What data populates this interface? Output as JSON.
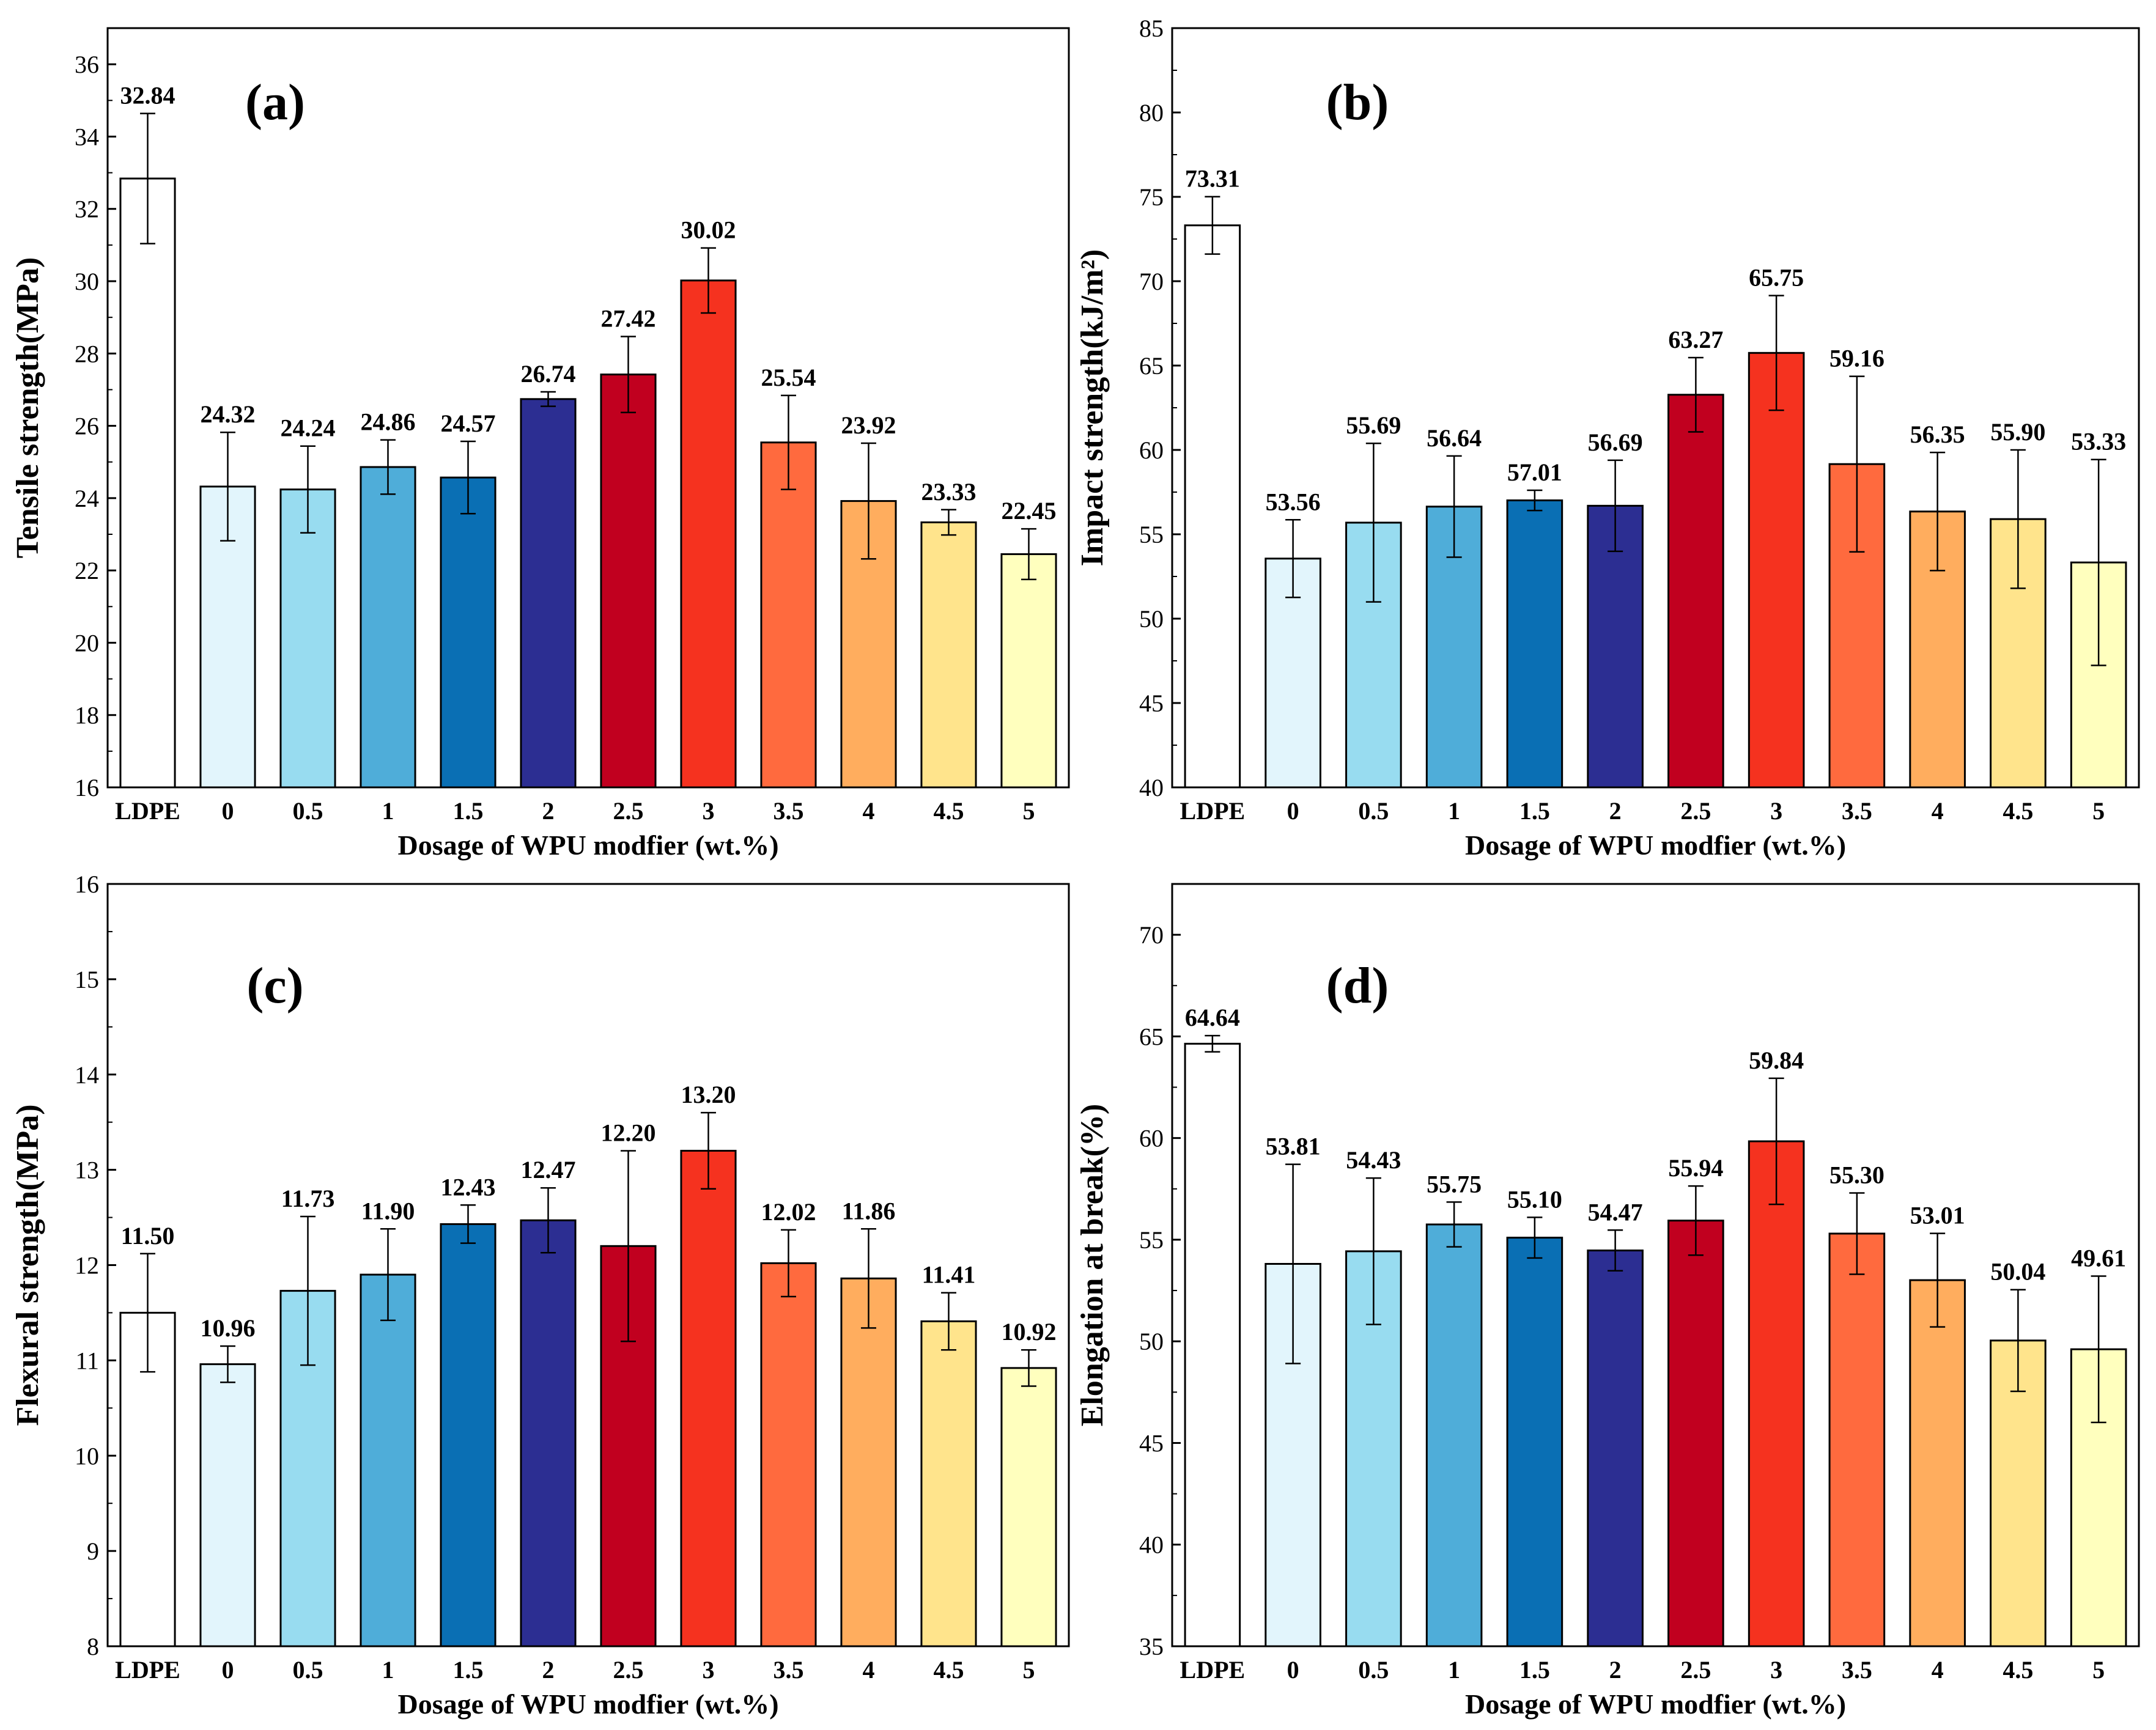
{
  "chart_data": [
    {
      "type": "bar",
      "panel_label": "(a)",
      "ylabel": "Tensile strength(MPa)",
      "xlabel": "Dosage of WPU modfier (wt.%)",
      "ylim": [
        16,
        37
      ],
      "yticks": [
        16,
        18,
        20,
        22,
        24,
        26,
        28,
        30,
        32,
        34,
        36
      ],
      "categories": [
        "LDPE",
        "0",
        "0.5",
        "1",
        "1.5",
        "2",
        "2.5",
        "3",
        "3.5",
        "4",
        "4.5",
        "5"
      ],
      "values": [
        32.84,
        24.32,
        24.24,
        24.86,
        24.57,
        26.74,
        27.42,
        30.02,
        25.54,
        23.92,
        23.33,
        22.45
      ],
      "value_labels": [
        "32.84",
        "24.32",
        "24.24",
        "24.86",
        "24.57",
        "26.74",
        "27.42",
        "30.02",
        "25.54",
        "23.92",
        "23.33",
        "22.45"
      ],
      "errors": [
        1.8,
        1.5,
        1.2,
        0.75,
        1.0,
        0.2,
        1.05,
        0.9,
        1.3,
        1.6,
        0.35,
        0.7
      ]
    },
    {
      "type": "bar",
      "panel_label": "(b)",
      "ylabel": "Impact strength(kJ/m²)",
      "xlabel": "Dosage of WPU modfier (wt.%)",
      "ylim": [
        40,
        85
      ],
      "yticks": [
        40,
        45,
        50,
        55,
        60,
        65,
        70,
        75,
        80,
        85
      ],
      "categories": [
        "LDPE",
        "0",
        "0.5",
        "1",
        "1.5",
        "2",
        "2.5",
        "3",
        "3.5",
        "4",
        "4.5",
        "5"
      ],
      "values": [
        73.31,
        53.56,
        55.69,
        56.64,
        57.01,
        56.69,
        63.27,
        65.75,
        59.16,
        56.35,
        55.9,
        53.33
      ],
      "value_labels": [
        "73.31",
        "53.56",
        "55.69",
        "56.64",
        "57.01",
        "56.69",
        "63.27",
        "65.75",
        "59.16",
        "56.35",
        "55.90",
        "53.33"
      ],
      "errors": [
        1.7,
        2.3,
        4.7,
        3.0,
        0.6,
        2.7,
        2.2,
        3.4,
        5.2,
        3.5,
        4.1,
        6.1
      ]
    },
    {
      "type": "bar",
      "panel_label": "(c)",
      "ylabel": "Flexural strength(MPa)",
      "xlabel": "Dosage of WPU modfier (wt.%)",
      "ylim": [
        8,
        16
      ],
      "yticks": [
        8,
        9,
        10,
        11,
        12,
        13,
        14,
        15,
        16
      ],
      "categories": [
        "LDPE",
        "0",
        "0.5",
        "1",
        "1.5",
        "2",
        "2.5",
        "3",
        "3.5",
        "4",
        "4.5",
        "5"
      ],
      "values": [
        11.5,
        10.96,
        11.73,
        11.9,
        12.43,
        12.47,
        12.2,
        13.2,
        12.02,
        11.86,
        11.41,
        10.92
      ],
      "value_labels": [
        "11.50",
        "10.96",
        "11.73",
        "11.90",
        "12.43",
        "12.47",
        "12.20",
        "13.20",
        "12.02",
        "11.86",
        "11.41",
        "10.92"
      ],
      "errors": [
        0.62,
        0.19,
        0.78,
        0.48,
        0.2,
        0.34,
        1.0,
        0.4,
        0.35,
        0.52,
        0.3,
        0.19
      ]
    },
    {
      "type": "bar",
      "panel_label": "(d)",
      "ylabel": "Elongation at break(%)",
      "xlabel": "Dosage of WPU modfier (wt.%)",
      "ylim": [
        35,
        72.5
      ],
      "yticks": [
        35,
        40,
        45,
        50,
        55,
        60,
        65,
        70
      ],
      "categories": [
        "LDPE",
        "0",
        "0.5",
        "1",
        "1.5",
        "2",
        "2.5",
        "3",
        "3.5",
        "4",
        "4.5",
        "5"
      ],
      "values": [
        64.64,
        53.81,
        54.43,
        55.75,
        55.1,
        54.47,
        55.94,
        59.84,
        55.3,
        53.01,
        50.04,
        49.61
      ],
      "value_labels": [
        "64.64",
        "53.81",
        "54.43",
        "55.75",
        "55.10",
        "54.47",
        "55.94",
        "59.84",
        "55.30",
        "53.01",
        "50.04",
        "49.61"
      ],
      "errors": [
        0.4,
        4.9,
        3.6,
        1.1,
        1.0,
        1.0,
        1.7,
        3.1,
        2.0,
        2.3,
        2.5,
        3.6
      ]
    }
  ],
  "colors": {
    "bars": [
      "#ffffff",
      "#e2f5fc",
      "#98dcf0",
      "#4fadd9",
      "#0a6fb4",
      "#2c2e92",
      "#c1001f",
      "#f5321f",
      "#ff6a3e",
      "#ffad5e",
      "#ffe48c",
      "#ffffbe"
    ],
    "axis": "#000000",
    "background": "#ffffff"
  }
}
